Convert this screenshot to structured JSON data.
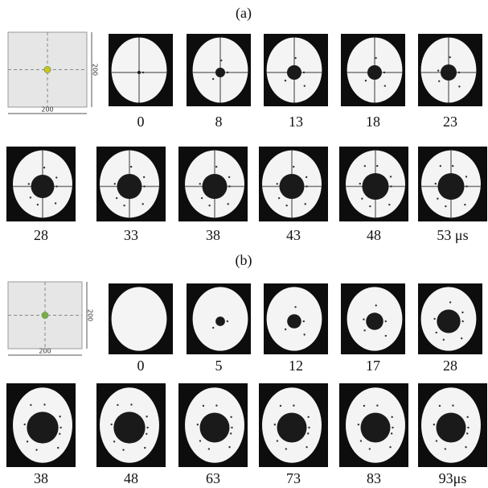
{
  "panels": [
    {
      "label": "(a)",
      "diagram": {
        "width_label": "200",
        "height_label": "200"
      },
      "frames": [
        "0",
        "8",
        "13",
        "18",
        "23",
        "28",
        "33",
        "38",
        "43",
        "48",
        "53 μs"
      ]
    },
    {
      "label": "(b)",
      "diagram": {
        "width_label": "200",
        "height_label": "200"
      },
      "frames": [
        "0",
        "5",
        "12",
        "17",
        "28",
        "38",
        "48",
        "63",
        "73",
        "83",
        "93μs"
      ]
    }
  ]
}
